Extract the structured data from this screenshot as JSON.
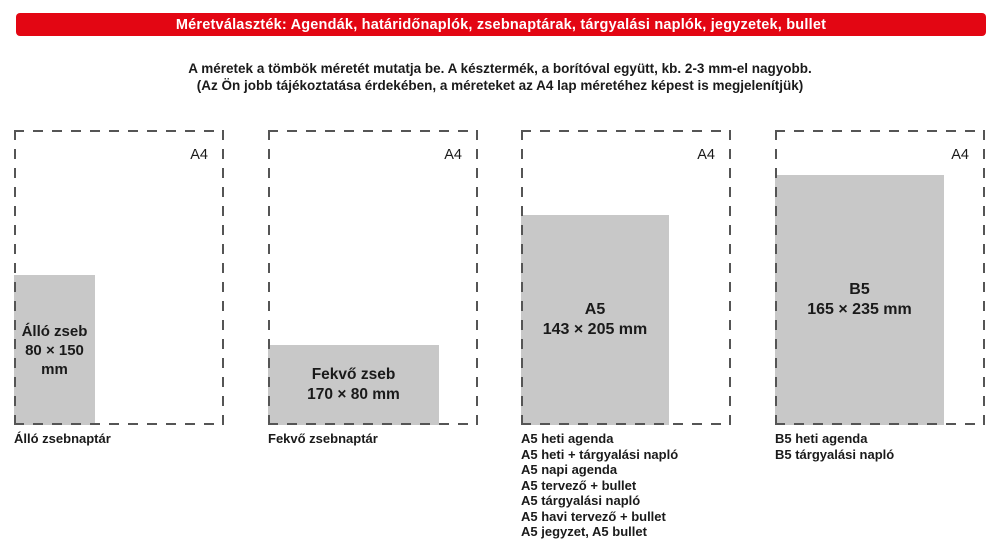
{
  "banner": {
    "label": "Méretválaszték: Agendák, határidőnaplók, zsebnaptárak, tárgyalási naplók, jegyzetek, bullet"
  },
  "intro": {
    "line1": "A méretek a tömbök méretét mutatja be. A késztermék, a borítóval együtt, kb. 2-3 mm-el nagyobb.",
    "line2": "(Az Ön jobb tájékoztatása érdekében, a méreteket az A4 lap méretéhez képest is megjelenítjük)"
  },
  "colors": {
    "banner_bg": "#e30613",
    "banner_text": "#ffffff",
    "box_fill": "#c8c8c8",
    "dash": "#555555",
    "text": "#1a1a1a"
  },
  "panels": [
    {
      "a4_label": "A4",
      "box_lines": [
        "Álló zseb",
        "80 × 150",
        "mm"
      ],
      "captions": [
        "Álló zsebnaptár"
      ]
    },
    {
      "a4_label": "A4",
      "box_lines": [
        "Fekvő zseb",
        "170 × 80 mm"
      ],
      "captions": [
        "Fekvő zsebnaptár"
      ]
    },
    {
      "a4_label": "A4",
      "box_lines": [
        "A5",
        "143 × 205 mm"
      ],
      "captions": [
        "A5 heti agenda",
        "A5 heti + tárgyalási napló",
        "A5 napi agenda",
        "A5 tervező + bullet",
        "A5 tárgyalási napló",
        "A5 havi tervező + bullet",
        "A5 jegyzet, A5 bullet"
      ]
    },
    {
      "a4_label": "A4",
      "box_lines": [
        "B5",
        "165 × 235 mm"
      ],
      "captions": [
        "B5 heti agenda",
        "B5 tárgyalási napló"
      ]
    }
  ]
}
